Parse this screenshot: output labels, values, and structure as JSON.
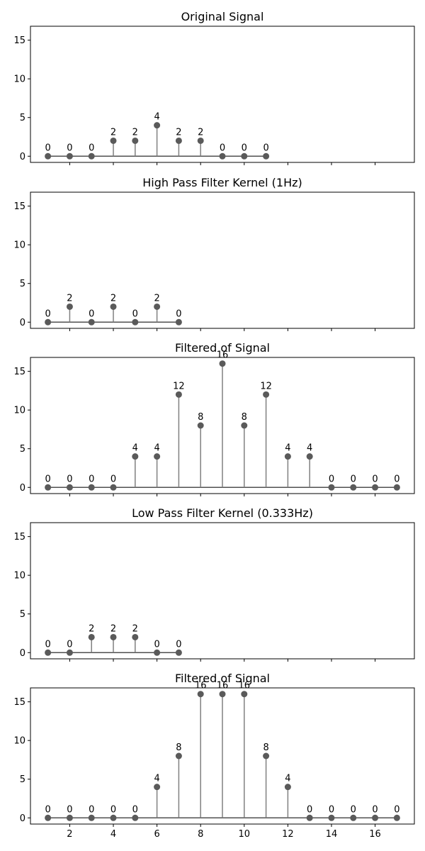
{
  "chart_data": [
    {
      "type": "stem",
      "title": "Original Signal",
      "x": [
        1,
        2,
        3,
        4,
        5,
        6,
        7,
        8,
        9,
        10,
        11
      ],
      "values": [
        0,
        0,
        0,
        2,
        2,
        4,
        2,
        2,
        0,
        0,
        0
      ],
      "xlim": [
        0.2,
        17.8
      ],
      "ylim": [
        -0.8,
        16.8
      ],
      "yticks": [
        0,
        5,
        10,
        15
      ],
      "xtick_labels_shown": false
    },
    {
      "type": "stem",
      "title": "High Pass Filter Kernel (1Hz)",
      "x": [
        1,
        2,
        3,
        4,
        5,
        6,
        7
      ],
      "values": [
        0,
        2,
        0,
        2,
        0,
        2,
        0
      ],
      "xlim": [
        0.2,
        17.8
      ],
      "ylim": [
        -0.8,
        16.8
      ],
      "yticks": [
        0,
        5,
        10,
        15
      ],
      "xtick_labels_shown": false
    },
    {
      "type": "stem",
      "title": "Filtered of Signal",
      "x": [
        1,
        2,
        3,
        4,
        5,
        6,
        7,
        8,
        9,
        10,
        11,
        12,
        13,
        14,
        15,
        16,
        17
      ],
      "values": [
        0,
        0,
        0,
        0,
        4,
        4,
        12,
        8,
        16,
        8,
        12,
        4,
        4,
        0,
        0,
        0,
        0
      ],
      "xlim": [
        0.2,
        17.8
      ],
      "ylim": [
        -0.8,
        16.8
      ],
      "yticks": [
        0,
        5,
        10,
        15
      ],
      "xtick_labels_shown": false
    },
    {
      "type": "stem",
      "title": "Low Pass Filter Kernel (0.333Hz)",
      "x": [
        1,
        2,
        3,
        4,
        5,
        6,
        7
      ],
      "values": [
        0,
        0,
        2,
        2,
        2,
        0,
        0
      ],
      "xlim": [
        0.2,
        17.8
      ],
      "ylim": [
        -0.8,
        16.8
      ],
      "yticks": [
        0,
        5,
        10,
        15
      ],
      "xtick_labels_shown": false
    },
    {
      "type": "stem",
      "title": "Filtered of Signal",
      "x": [
        1,
        2,
        3,
        4,
        5,
        6,
        7,
        8,
        9,
        10,
        11,
        12,
        13,
        14,
        15,
        16,
        17
      ],
      "values": [
        0,
        0,
        0,
        0,
        0,
        4,
        8,
        16,
        16,
        16,
        8,
        4,
        0,
        0,
        0,
        0,
        0
      ],
      "xlim": [
        0.2,
        17.8
      ],
      "ylim": [
        -0.8,
        16.8
      ],
      "yticks": [
        0,
        5,
        10,
        15
      ],
      "xticks": [
        2,
        4,
        6,
        8,
        10,
        12,
        14,
        16
      ],
      "xtick_labels_shown": true
    }
  ],
  "colors": {
    "stem": "#808080",
    "marker": "#5a5a5a",
    "baseline": "#505050",
    "axes": "#000000"
  }
}
